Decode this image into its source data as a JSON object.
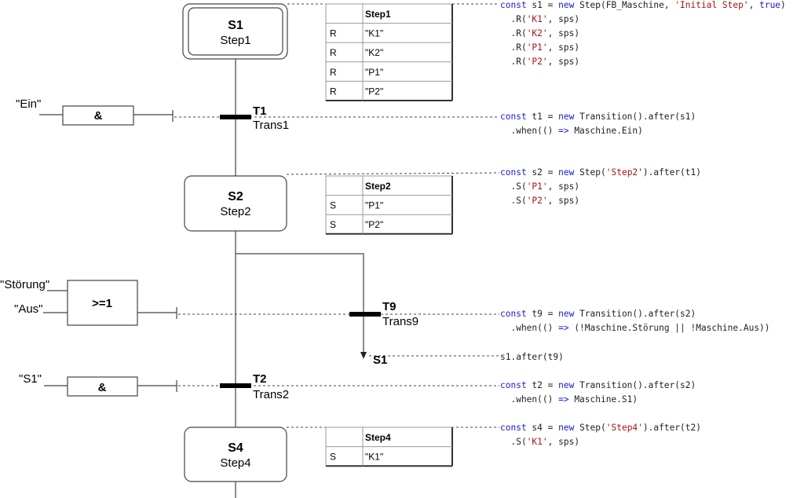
{
  "colors": {
    "keyword": "#1a1acc",
    "string": "#a31515",
    "text": "#222222",
    "line": "#333333"
  },
  "steps": [
    {
      "id": "S1",
      "name": "Step1",
      "initial": true,
      "table": {
        "header": "Step1",
        "rows": [
          [
            "R",
            "\"K1\""
          ],
          [
            "R",
            "\"K2\""
          ],
          [
            "R",
            "\"P1\""
          ],
          [
            "R",
            "\"P2\""
          ]
        ]
      }
    },
    {
      "id": "S2",
      "name": "Step2",
      "initial": false,
      "table": {
        "header": "Step2",
        "rows": [
          [
            "S",
            "\"P1\""
          ],
          [
            "S",
            "\"P2\""
          ]
        ]
      }
    },
    {
      "id": "S4",
      "name": "Step4",
      "initial": false,
      "table": {
        "header": "Step4",
        "rows": [
          [
            "S",
            "\"K1\""
          ]
        ]
      }
    }
  ],
  "transitions": [
    {
      "id": "T1",
      "name": "Trans1",
      "gate": "&",
      "inputs": [
        "\"Ein\""
      ]
    },
    {
      "id": "T9",
      "name": "Trans9",
      "gate": ">=1",
      "inputs": [
        "\"Störung\"",
        "\"Aus\""
      ],
      "jump_target": "S1"
    },
    {
      "id": "T2",
      "name": "Trans2",
      "gate": "&",
      "inputs": [
        "\"S1\""
      ]
    }
  ],
  "code_blocks": [
    {
      "lines": [
        [
          [
            "k",
            "const"
          ],
          [
            "t",
            " s1 = "
          ],
          [
            "k",
            "new"
          ],
          [
            "t",
            " Step(FB_Maschine, "
          ],
          [
            "s",
            "'Initial Step'"
          ],
          [
            "t",
            ", "
          ],
          [
            "k",
            "true"
          ],
          [
            "t",
            ")"
          ]
        ],
        [
          [
            "t",
            "  .R("
          ],
          [
            "s",
            "'K1'"
          ],
          [
            "t",
            ", sps)"
          ]
        ],
        [
          [
            "t",
            "  .R("
          ],
          [
            "s",
            "'K2'"
          ],
          [
            "t",
            ", sps)"
          ]
        ],
        [
          [
            "t",
            "  .R("
          ],
          [
            "s",
            "'P1'"
          ],
          [
            "t",
            ", sps)"
          ]
        ],
        [
          [
            "t",
            "  .R("
          ],
          [
            "s",
            "'P2'"
          ],
          [
            "t",
            ", sps)"
          ]
        ]
      ]
    },
    {
      "lines": [
        [
          [
            "k",
            "const"
          ],
          [
            "t",
            " t1 = "
          ],
          [
            "k",
            "new"
          ],
          [
            "t",
            " Transition().after(s1)"
          ]
        ],
        [
          [
            "t",
            "  .when(() "
          ],
          [
            "k",
            "=>"
          ],
          [
            "t",
            " Maschine.Ein)"
          ]
        ]
      ]
    },
    {
      "lines": [
        [
          [
            "k",
            "const"
          ],
          [
            "t",
            " s2 = "
          ],
          [
            "k",
            "new"
          ],
          [
            "t",
            " Step("
          ],
          [
            "s",
            "'Step2'"
          ],
          [
            "t",
            ").after(t1)"
          ]
        ],
        [
          [
            "t",
            "  .S("
          ],
          [
            "s",
            "'P1'"
          ],
          [
            "t",
            ", sps)"
          ]
        ],
        [
          [
            "t",
            "  .S("
          ],
          [
            "s",
            "'P2'"
          ],
          [
            "t",
            ", sps)"
          ]
        ]
      ]
    },
    {
      "lines": [
        [
          [
            "k",
            "const"
          ],
          [
            "t",
            " t9 = "
          ],
          [
            "k",
            "new"
          ],
          [
            "t",
            " Transition().after(s2)"
          ]
        ],
        [
          [
            "t",
            "  .when(() "
          ],
          [
            "k",
            "=>"
          ],
          [
            "t",
            " (!Maschine.Störung || !Maschine.Aus))"
          ]
        ]
      ]
    },
    {
      "lines": [
        [
          [
            "t",
            "s1.after(t9)"
          ]
        ]
      ]
    },
    {
      "lines": [
        [
          [
            "k",
            "const"
          ],
          [
            "t",
            " t2 = "
          ],
          [
            "k",
            "new"
          ],
          [
            "t",
            " Transition().after(s2)"
          ]
        ],
        [
          [
            "t",
            "  .when(() "
          ],
          [
            "k",
            "=>"
          ],
          [
            "t",
            " Maschine.S1)"
          ]
        ]
      ]
    },
    {
      "lines": [
        [
          [
            "k",
            "const"
          ],
          [
            "t",
            " s4 = "
          ],
          [
            "k",
            "new"
          ],
          [
            "t",
            " Step("
          ],
          [
            "s",
            "'Step4'"
          ],
          [
            "t",
            ").after(t2)"
          ]
        ],
        [
          [
            "t",
            "  .S("
          ],
          [
            "s",
            "'K1'"
          ],
          [
            "t",
            ", sps)"
          ]
        ]
      ]
    }
  ]
}
